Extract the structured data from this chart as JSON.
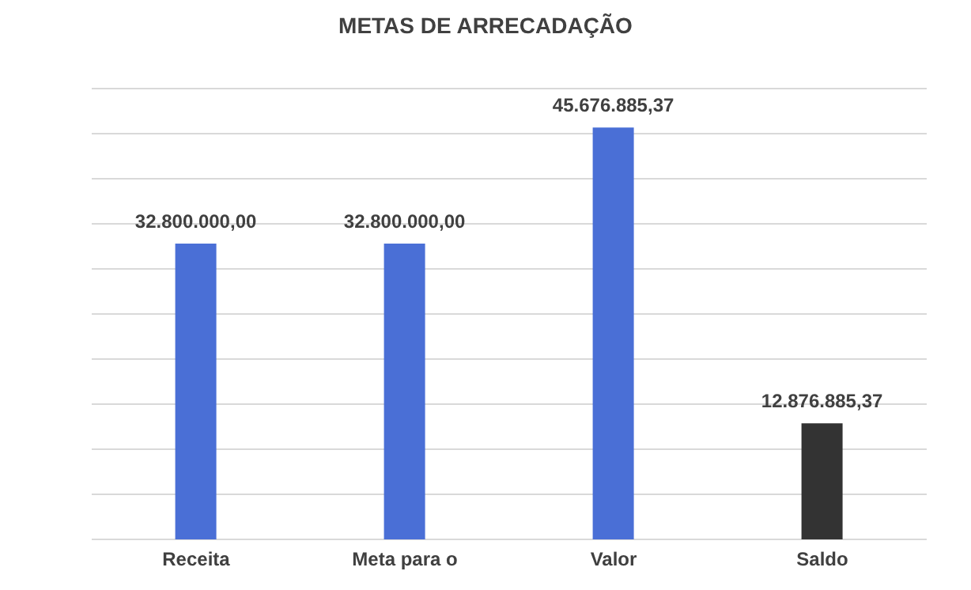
{
  "chart_data": {
    "type": "bar",
    "title": "METAS DE ARRECADAÇÃO",
    "categories": [
      "Receita",
      "Meta para o",
      "Valor",
      "Saldo"
    ],
    "values": [
      32800000,
      32800000,
      45676885.37,
      12876885.37
    ],
    "colors": [
      "#4a6fd6",
      "#4a6fd6",
      "#4a6fd6",
      "#333333"
    ],
    "value_labels": [
      "32.800.000,00",
      "32.800.000,00",
      "45.676.885,37",
      "12.876.885,37"
    ],
    "ylim": [
      0,
      50000000
    ],
    "yticks": [
      {
        "value": 0,
        "label": null
      },
      {
        "value": 5000000,
        "label": null
      },
      {
        "value": 10000000,
        "label": null
      },
      {
        "value": 15000000,
        "label": null
      },
      {
        "value": 20000000,
        "label": null
      },
      {
        "value": 25000000,
        "label": null
      },
      {
        "value": 30000000,
        "label": null
      },
      {
        "value": 35000000,
        "label": null
      },
      {
        "value": 40000000,
        "label": null
      },
      {
        "value": 45000000,
        "label": null
      },
      {
        "value": 50000000,
        "label": null
      }
    ],
    "tick_labels": "x",
    "grid": "y"
  }
}
